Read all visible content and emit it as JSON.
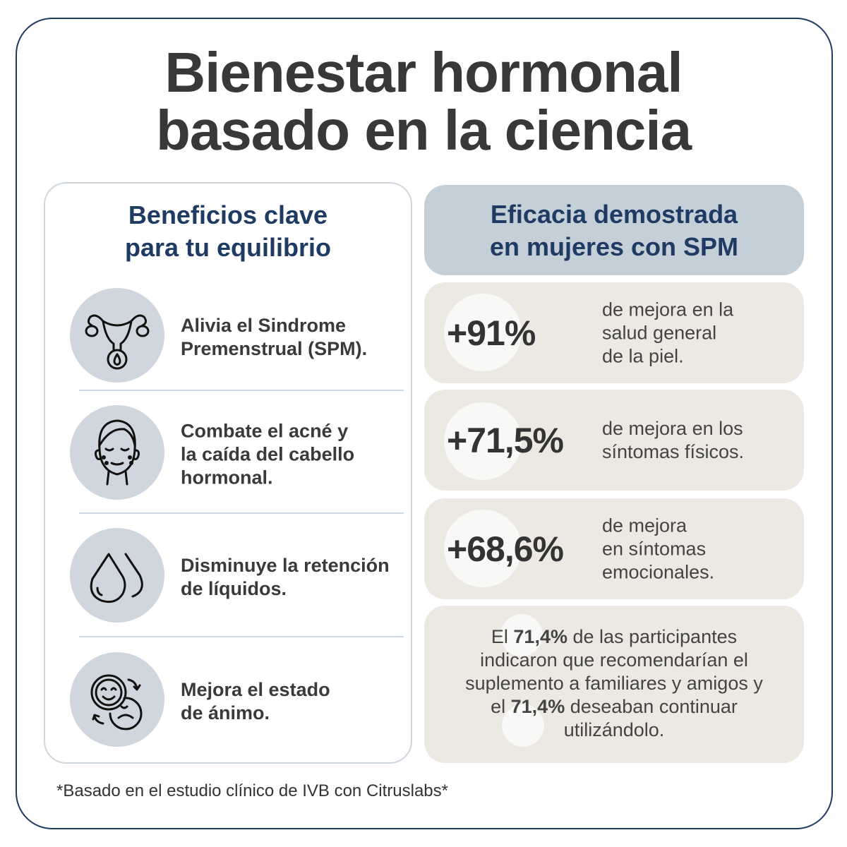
{
  "title": {
    "line1": "Bienestar hormonal",
    "line2": "basado en la ciencia"
  },
  "benefits": {
    "heading_line1": "Beneficios clave",
    "heading_line2": "para tu equilibrio",
    "items": [
      {
        "icon": "uterus-icon",
        "line1": "Alivia el Sindrome",
        "line2": "Premenstrual (SPM).",
        "line3": ""
      },
      {
        "icon": "face-acne-icon",
        "line1": "Combate el acné y",
        "line2": "la caída del cabello",
        "line3": "hormonal."
      },
      {
        "icon": "water-drops-icon",
        "line1": "Disminuye la retención",
        "line2": "de líquidos.",
        "line3": ""
      },
      {
        "icon": "mood-faces-icon",
        "line1": "Mejora el estado",
        "line2": "de ánimo.",
        "line3": ""
      }
    ]
  },
  "efficacy": {
    "heading_line1": "Eficacia demostrada",
    "heading_line2": "en mujeres con SPM",
    "stats": [
      {
        "value": "+91%",
        "line1": "de mejora en la",
        "line2": "salud general",
        "line3": "de la piel."
      },
      {
        "value": "+71,5%",
        "line1": "de mejora en los",
        "line2": "síntomas físicos.",
        "line3": ""
      },
      {
        "value": "+68,6%",
        "line1": "de mejora",
        "line2": "en síntomas",
        "line3": "emocionales."
      }
    ],
    "summary": {
      "p1": "El ",
      "b1": "71,4%",
      "p2": " de las participantes",
      "line2": "indicaron que recomendarían el",
      "line3": "suplemento a familiares y amigos y",
      "p4": "el ",
      "b2": "71,4%",
      "p5": " deseaban continuar",
      "line5": "utilizándolo."
    }
  },
  "footnote": "*Basado en el estudio clínico de IVB con Citruslabs*",
  "colors": {
    "navy": "#1f3a63",
    "header_bg": "#c5cfd8",
    "card_bg": "#ece9e3",
    "icon_bg": "#cfd6dd"
  }
}
